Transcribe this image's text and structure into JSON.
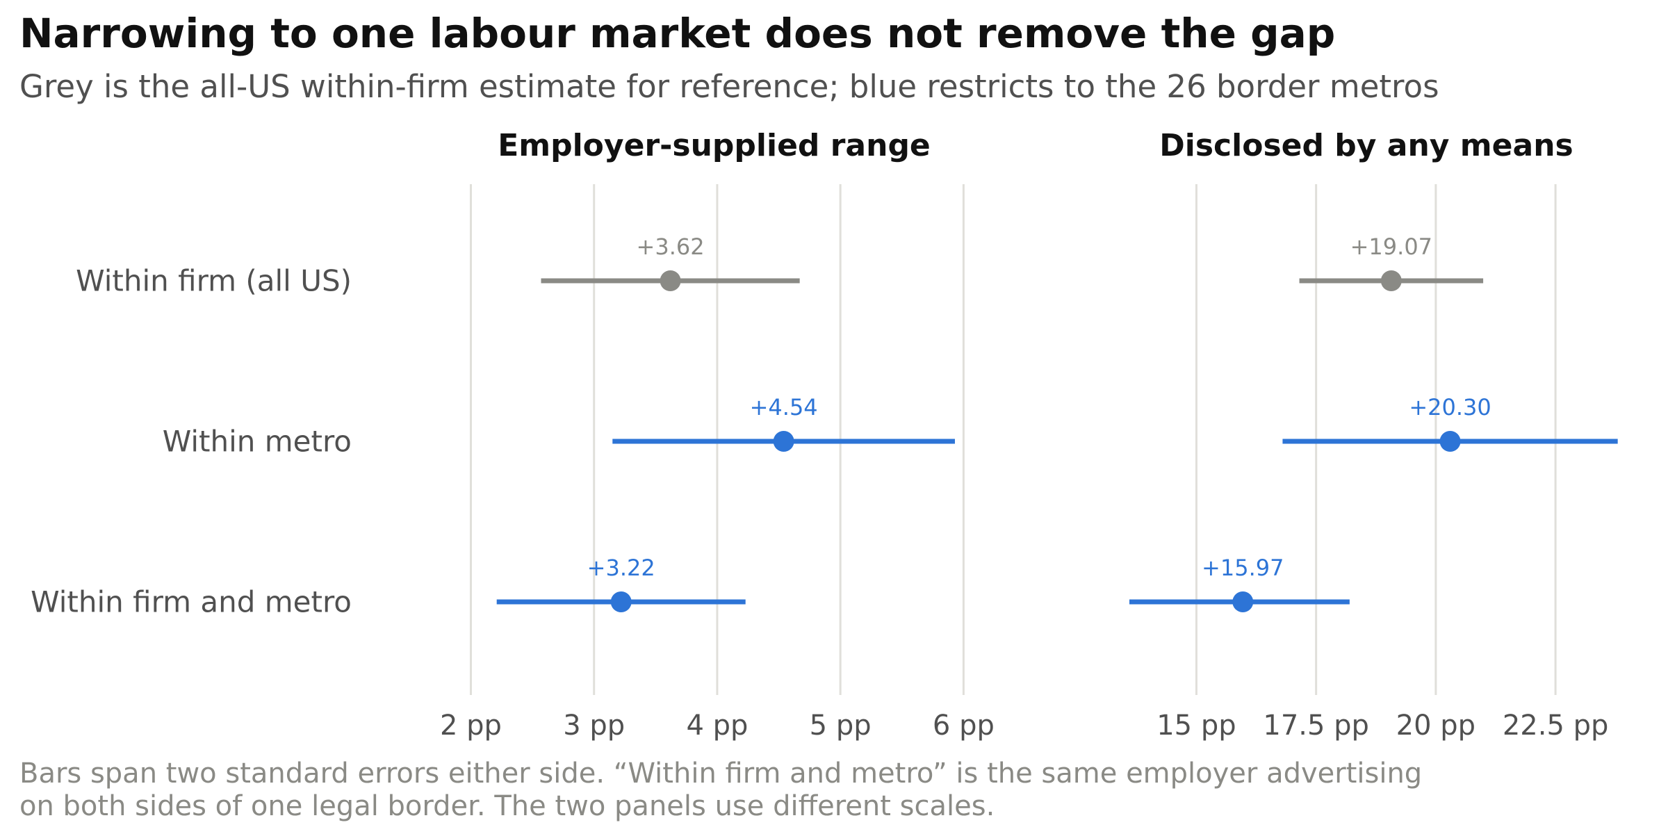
{
  "title": "Narrowing to one labour market does not remove the gap",
  "subtitle": "Grey is the all-US within-firm estimate for reference; blue restricts to the 26 border metros",
  "note_lines": [
    "Bars span two standard errors either side. “Within firm and metro” is the same employer advertising",
    "on both sides of one legal border. The two panels use different scales."
  ],
  "colors": {
    "reference": "#8a8a85",
    "highlight": "#2d74d6",
    "grid": "#e0dfda",
    "row_label": "#505050",
    "tick_label": "#505050",
    "panel_title": "#111111"
  },
  "chart_data": {
    "type": "dot-range",
    "rows": [
      "Within firm (all US)",
      "Within metro",
      "Within firm and metro"
    ],
    "row_series": [
      "reference",
      "highlight",
      "highlight"
    ],
    "panels": [
      {
        "title": "Employer-supplied range",
        "xlim": [
          1.45,
          6.5
        ],
        "ticks": [
          2,
          3,
          4,
          5,
          6
        ],
        "tick_labels": [
          "2 pp",
          "3 pp",
          "4 pp",
          "5 pp",
          "6 pp"
        ],
        "points": [
          {
            "row": "Within firm (all US)",
            "value": 3.62,
            "low": 2.57,
            "high": 4.67,
            "label": "+3.62"
          },
          {
            "row": "Within metro",
            "value": 4.54,
            "low": 3.15,
            "high": 5.93,
            "label": "+4.54"
          },
          {
            "row": "Within firm and metro",
            "value": 3.22,
            "low": 2.21,
            "high": 4.23,
            "label": "+3.22"
          }
        ]
      },
      {
        "title": "Disclosed by any means",
        "xlim": [
          12.7,
          24.4
        ],
        "ticks": [
          15,
          17.5,
          20,
          22.5
        ],
        "tick_labels": [
          "15 pp",
          "17.5 pp",
          "20 pp",
          "22.5 pp"
        ],
        "points": [
          {
            "row": "Within firm (all US)",
            "value": 19.07,
            "low": 17.15,
            "high": 20.99,
            "label": "+19.07"
          },
          {
            "row": "Within metro",
            "value": 20.3,
            "low": 16.8,
            "high": 23.8,
            "label": "+20.30"
          },
          {
            "row": "Within firm and metro",
            "value": 15.97,
            "low": 13.6,
            "high": 18.2,
            "label": "+15.97"
          }
        ]
      }
    ]
  }
}
